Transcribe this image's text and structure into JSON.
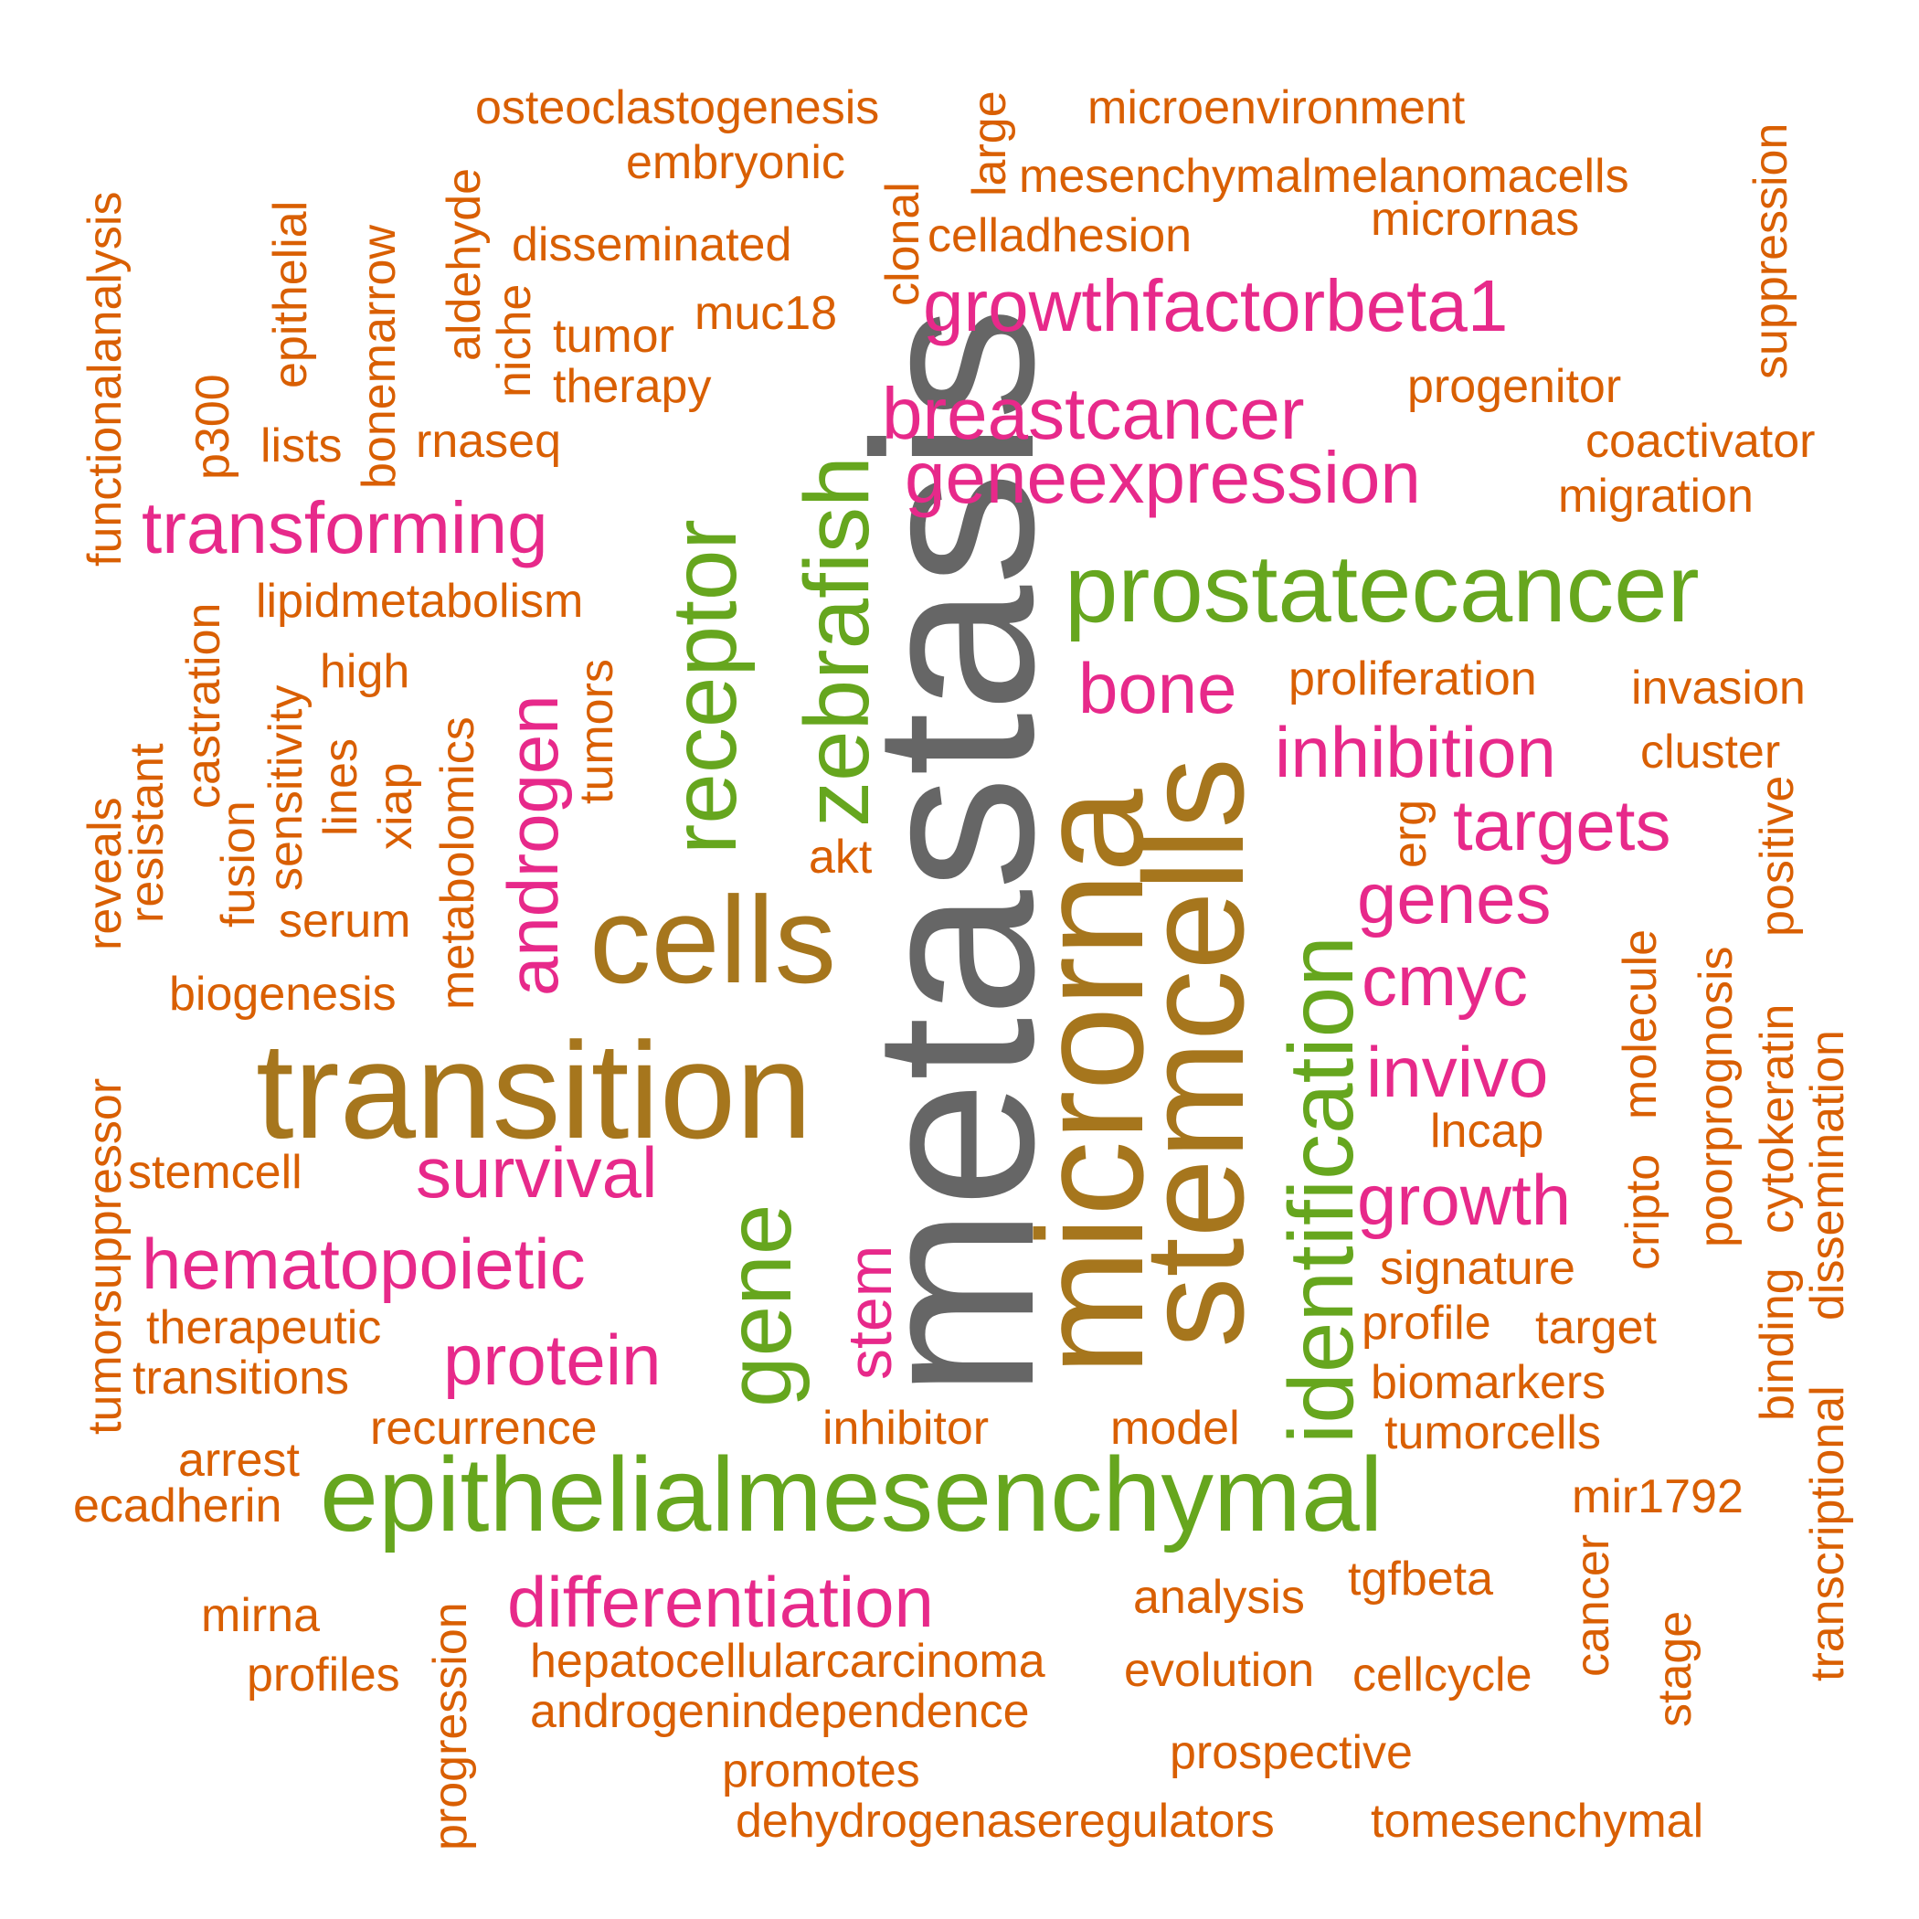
{
  "palette": {
    "gray": "#666666",
    "brown": "#a6761d",
    "green": "#66a61e",
    "pink": "#e7298a",
    "orange": "#d95f02"
  },
  "words": [
    {
      "text": "metastasis",
      "color": "gray"
    },
    {
      "text": "microrna",
      "color": "brown"
    },
    {
      "text": "stemcells",
      "color": "brown"
    },
    {
      "text": "transition",
      "color": "brown"
    },
    {
      "text": "cells",
      "color": "brown"
    },
    {
      "text": "epithelialmesenchymal",
      "color": "green"
    },
    {
      "text": "prostatecancer",
      "color": "green"
    },
    {
      "text": "identification",
      "color": "green"
    },
    {
      "text": "gene",
      "color": "green"
    },
    {
      "text": "receptor",
      "color": "green"
    },
    {
      "text": "zebrafish",
      "color": "green"
    },
    {
      "text": "growthfactorbeta1",
      "color": "pink"
    },
    {
      "text": "breastcancer",
      "color": "pink"
    },
    {
      "text": "geneexpression",
      "color": "pink"
    },
    {
      "text": "transforming",
      "color": "pink"
    },
    {
      "text": "bone",
      "color": "pink"
    },
    {
      "text": "inhibition",
      "color": "pink"
    },
    {
      "text": "targets",
      "color": "pink"
    },
    {
      "text": "genes",
      "color": "pink"
    },
    {
      "text": "cmyc",
      "color": "pink"
    },
    {
      "text": "invivo",
      "color": "pink"
    },
    {
      "text": "growth",
      "color": "pink"
    },
    {
      "text": "survival",
      "color": "pink"
    },
    {
      "text": "hematopoietic",
      "color": "pink"
    },
    {
      "text": "protein",
      "color": "pink"
    },
    {
      "text": "differentiation",
      "color": "pink"
    },
    {
      "text": "androgen",
      "color": "pink"
    },
    {
      "text": "stem",
      "color": "pink"
    },
    {
      "text": "osteoclastogenesis",
      "color": "orange"
    },
    {
      "text": "embryonic",
      "color": "orange"
    },
    {
      "text": "large",
      "color": "orange"
    },
    {
      "text": "microenvironment",
      "color": "orange"
    },
    {
      "text": "mesenchymalmelanomacells",
      "color": "orange"
    },
    {
      "text": "micrornas",
      "color": "orange"
    },
    {
      "text": "celladhesion",
      "color": "orange"
    },
    {
      "text": "clonal",
      "color": "orange"
    },
    {
      "text": "disseminated",
      "color": "orange"
    },
    {
      "text": "functionalanalysis",
      "color": "orange"
    },
    {
      "text": "epithelial",
      "color": "orange"
    },
    {
      "text": "bonemarrow",
      "color": "orange"
    },
    {
      "text": "aldehyde",
      "color": "orange"
    },
    {
      "text": "niche",
      "color": "orange"
    },
    {
      "text": "tumor",
      "color": "orange"
    },
    {
      "text": "muc18",
      "color": "orange"
    },
    {
      "text": "therapy",
      "color": "orange"
    },
    {
      "text": "suppression",
      "color": "orange"
    },
    {
      "text": "progenitor",
      "color": "orange"
    },
    {
      "text": "coactivator",
      "color": "orange"
    },
    {
      "text": "migration",
      "color": "orange"
    },
    {
      "text": "p300",
      "color": "orange"
    },
    {
      "text": "lists",
      "color": "orange"
    },
    {
      "text": "rnaseq",
      "color": "orange"
    },
    {
      "text": "lipidmetabolism",
      "color": "orange"
    },
    {
      "text": "castration",
      "color": "orange"
    },
    {
      "text": "high",
      "color": "orange"
    },
    {
      "text": "sensitivity",
      "color": "orange"
    },
    {
      "text": "metabolomics",
      "color": "orange"
    },
    {
      "text": "tumors",
      "color": "orange"
    },
    {
      "text": "lines",
      "color": "orange"
    },
    {
      "text": "xiap",
      "color": "orange"
    },
    {
      "text": "reveals",
      "color": "orange"
    },
    {
      "text": "resistant",
      "color": "orange"
    },
    {
      "text": "fusion",
      "color": "orange"
    },
    {
      "text": "serum",
      "color": "orange"
    },
    {
      "text": "biogenesis",
      "color": "orange"
    },
    {
      "text": "akt",
      "color": "orange"
    },
    {
      "text": "proliferation",
      "color": "orange"
    },
    {
      "text": "invasion",
      "color": "orange"
    },
    {
      "text": "cluster",
      "color": "orange"
    },
    {
      "text": "erg",
      "color": "orange"
    },
    {
      "text": "positive",
      "color": "orange"
    },
    {
      "text": "molecule",
      "color": "orange"
    },
    {
      "text": "poorprognosis",
      "color": "orange"
    },
    {
      "text": "cytokeratin",
      "color": "orange"
    },
    {
      "text": "lncap",
      "color": "orange"
    },
    {
      "text": "dissemination",
      "color": "orange"
    },
    {
      "text": "cripto",
      "color": "orange"
    },
    {
      "text": "signature",
      "color": "orange"
    },
    {
      "text": "binding",
      "color": "orange"
    },
    {
      "text": "profile",
      "color": "orange"
    },
    {
      "text": "target",
      "color": "orange"
    },
    {
      "text": "biomarkers",
      "color": "orange"
    },
    {
      "text": "tumorcells",
      "color": "orange"
    },
    {
      "text": "transcriptional",
      "color": "orange"
    },
    {
      "text": "tumorsuppressor",
      "color": "orange"
    },
    {
      "text": "stemcell",
      "color": "orange"
    },
    {
      "text": "therapeutic",
      "color": "orange"
    },
    {
      "text": "transitions",
      "color": "orange"
    },
    {
      "text": "recurrence",
      "color": "orange"
    },
    {
      "text": "inhibitor",
      "color": "orange"
    },
    {
      "text": "model",
      "color": "orange"
    },
    {
      "text": "arrest",
      "color": "orange"
    },
    {
      "text": "ecadherin",
      "color": "orange"
    },
    {
      "text": "mir1792",
      "color": "orange"
    },
    {
      "text": "mirna",
      "color": "orange"
    },
    {
      "text": "progression",
      "color": "orange"
    },
    {
      "text": "profiles",
      "color": "orange"
    },
    {
      "text": "analysis",
      "color": "orange"
    },
    {
      "text": "tgfbeta",
      "color": "orange"
    },
    {
      "text": "cancer",
      "color": "orange"
    },
    {
      "text": "stage",
      "color": "orange"
    },
    {
      "text": "hepatocellularcarcinoma",
      "color": "orange"
    },
    {
      "text": "evolution",
      "color": "orange"
    },
    {
      "text": "cellcycle",
      "color": "orange"
    },
    {
      "text": "androgenindependence",
      "color": "orange"
    },
    {
      "text": "prospective",
      "color": "orange"
    },
    {
      "text": "promotes",
      "color": "orange"
    },
    {
      "text": "dehydrogenaseregulators",
      "color": "orange"
    },
    {
      "text": "tomesenchymal",
      "color": "orange"
    }
  ]
}
